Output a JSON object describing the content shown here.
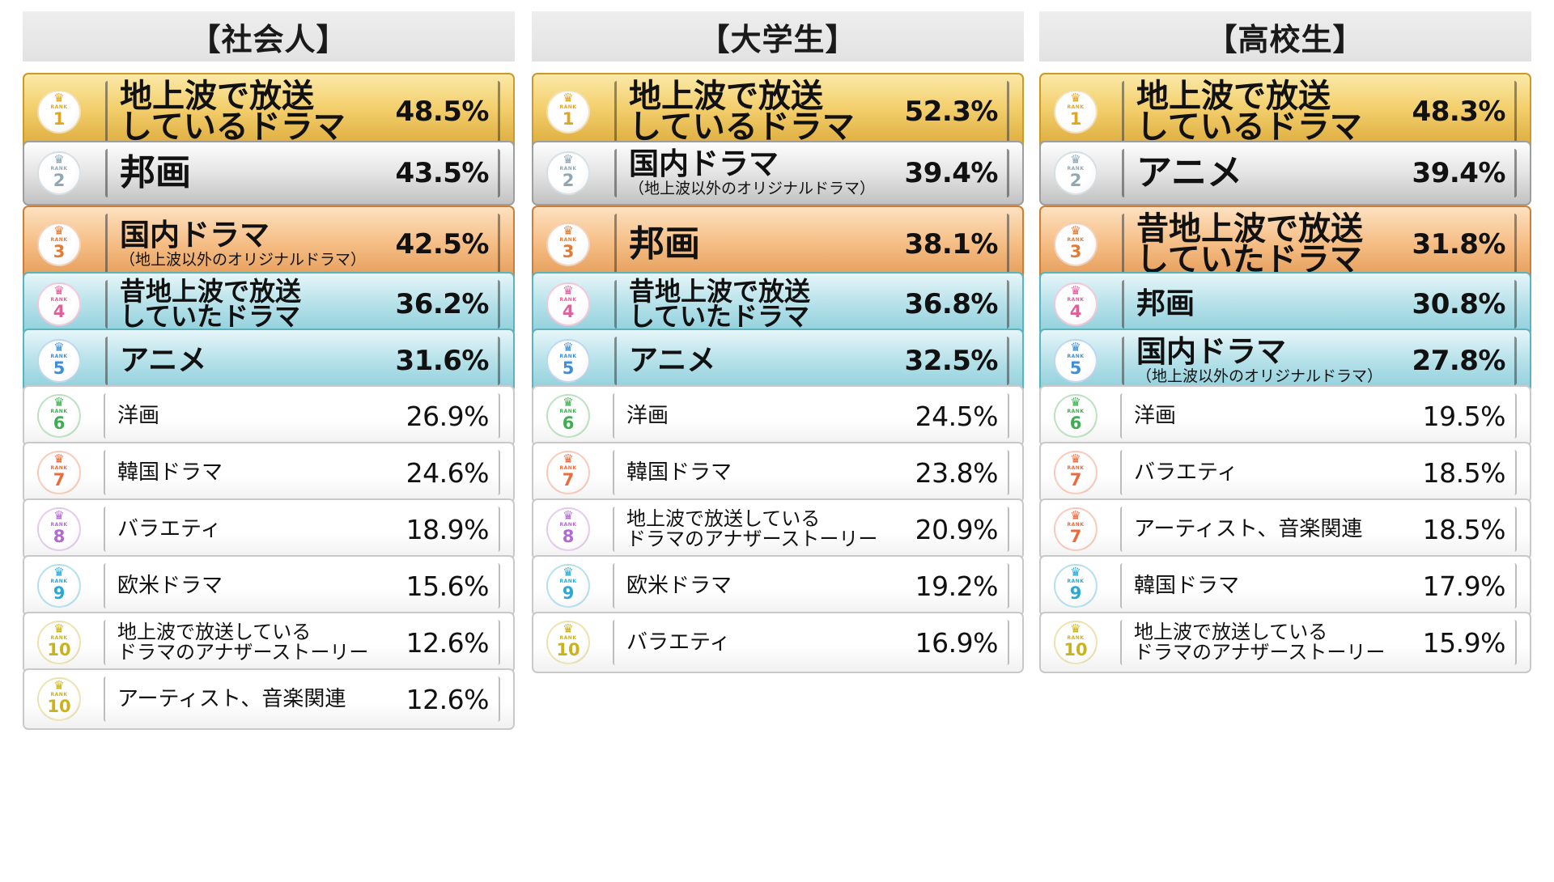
{
  "columns": [
    {
      "header": "【社会人】",
      "rows": [
        {
          "rank": "1",
          "label1": "地上波で放送",
          "label2": "しているドラマ",
          "pct": "48.5%"
        },
        {
          "rank": "2",
          "label1": "邦画",
          "label2": "",
          "pct": "43.5%"
        },
        {
          "rank": "3",
          "label1": "国内ドラマ",
          "label2": "（地上波以外のオリジナルドラマ）",
          "pct": "42.5%"
        },
        {
          "rank": "4",
          "label1": "昔地上波で放送",
          "label2": "していたドラマ",
          "pct": "36.2%"
        },
        {
          "rank": "5",
          "label1": "アニメ",
          "label2": "",
          "pct": "31.6%"
        },
        {
          "rank": "6",
          "label1": "洋画",
          "label2": "",
          "pct": "26.9%"
        },
        {
          "rank": "7",
          "label1": "韓国ドラマ",
          "label2": "",
          "pct": "24.6%"
        },
        {
          "rank": "8",
          "label1": "バラエティ",
          "label2": "",
          "pct": "18.9%"
        },
        {
          "rank": "9",
          "label1": "欧米ドラマ",
          "label2": "",
          "pct": "15.6%"
        },
        {
          "rank": "10",
          "label1": "地上波で放送している",
          "label2": "ドラマのアナザーストーリー",
          "pct": "12.6%"
        },
        {
          "rank": "10",
          "label1": "アーティスト、音楽関連",
          "label2": "",
          "pct": "12.6%"
        }
      ]
    },
    {
      "header": "【大学生】",
      "rows": [
        {
          "rank": "1",
          "label1": "地上波で放送",
          "label2": "しているドラマ",
          "pct": "52.3%"
        },
        {
          "rank": "2",
          "label1": "国内ドラマ",
          "label2": "（地上波以外のオリジナルドラマ）",
          "pct": "39.4%"
        },
        {
          "rank": "3",
          "label1": "邦画",
          "label2": "",
          "pct": "38.1%"
        },
        {
          "rank": "4",
          "label1": "昔地上波で放送",
          "label2": "していたドラマ",
          "pct": "36.8%"
        },
        {
          "rank": "5",
          "label1": "アニメ",
          "label2": "",
          "pct": "32.5%"
        },
        {
          "rank": "6",
          "label1": "洋画",
          "label2": "",
          "pct": "24.5%"
        },
        {
          "rank": "7",
          "label1": "韓国ドラマ",
          "label2": "",
          "pct": "23.8%"
        },
        {
          "rank": "8",
          "label1": "地上波で放送している",
          "label2": "ドラマのアナザーストーリー",
          "pct": "20.9%"
        },
        {
          "rank": "9",
          "label1": "欧米ドラマ",
          "label2": "",
          "pct": "19.2%"
        },
        {
          "rank": "10",
          "label1": "バラエティ",
          "label2": "",
          "pct": "16.9%"
        }
      ]
    },
    {
      "header": "【高校生】",
      "rows": [
        {
          "rank": "1",
          "label1": "地上波で放送",
          "label2": "しているドラマ",
          "pct": "48.3%"
        },
        {
          "rank": "2",
          "label1": "アニメ",
          "label2": "",
          "pct": "39.4%"
        },
        {
          "rank": "3",
          "label1": "昔地上波で放送",
          "label2": "していたドラマ",
          "pct": "31.8%"
        },
        {
          "rank": "4",
          "label1": "邦画",
          "label2": "",
          "pct": "30.8%"
        },
        {
          "rank": "5",
          "label1": "国内ドラマ",
          "label2": "（地上波以外のオリジナルドラマ）",
          "pct": "27.8%"
        },
        {
          "rank": "6",
          "label1": "洋画",
          "label2": "",
          "pct": "19.5%"
        },
        {
          "rank": "7",
          "label1": "バラエティ",
          "label2": "",
          "pct": "18.5%"
        },
        {
          "rank": "7",
          "label1": "アーティスト、音楽関連",
          "label2": "",
          "pct": "18.5%"
        },
        {
          "rank": "9",
          "label1": "韓国ドラマ",
          "label2": "",
          "pct": "17.9%"
        },
        {
          "rank": "10",
          "label1": "地上波で放送している",
          "label2": "ドラマのアナザーストーリー",
          "pct": "15.9%"
        }
      ]
    }
  ],
  "medal_text": "RANK",
  "medal_colors": {
    "1": "#e0a521",
    "2": "#8fa7b5",
    "3": "#e07c35",
    "4": "#e0609a",
    "5": "#3f8fd6",
    "6": "#3fae52",
    "7": "#ee6a3a",
    "8": "#b06ad0",
    "9": "#2ba9d4",
    "10": "#c9b21a"
  }
}
